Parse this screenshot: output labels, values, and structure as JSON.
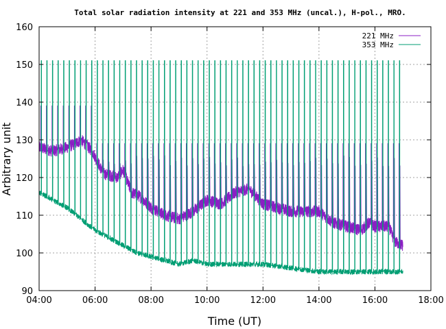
{
  "chart_data": {
    "type": "line",
    "title": "Total solar radiation intensity at 221 and 353 MHz (uncal.), H-pol., MRO.",
    "xlabel": "Time (UT)",
    "ylabel": "Arbitrary unit",
    "xlim": [
      4,
      18
    ],
    "ylim": [
      90,
      160
    ],
    "x_ticks": [
      "04:00",
      "06:00",
      "08:00",
      "10:00",
      "12:00",
      "14:00",
      "16:00",
      "18:00"
    ],
    "y_ticks": [
      90,
      100,
      110,
      120,
      130,
      140,
      150,
      160
    ],
    "grid": true,
    "legend_position": "top-right",
    "series": [
      {
        "name": "221 MHz",
        "color": "#8b1ec4",
        "x": [
          4.0,
          4.5,
          5.0,
          5.3,
          5.5,
          5.9,
          6.3,
          6.8,
          7.0,
          7.3,
          7.6,
          8.0,
          8.5,
          9.0,
          9.5,
          10.0,
          10.5,
          11.0,
          11.5,
          12.0,
          12.5,
          13.0,
          13.5,
          14.0,
          14.5,
          15.0,
          15.5,
          15.8,
          16.0,
          16.5,
          16.7,
          17.0
        ],
        "values": [
          128,
          127,
          128,
          129,
          130,
          127,
          121,
          120,
          122,
          116,
          115,
          112,
          110,
          109,
          111,
          114,
          113,
          116,
          117,
          113,
          112,
          111,
          111,
          111,
          108,
          107,
          106,
          108,
          107,
          107,
          103,
          102
        ],
        "comb_top": 139,
        "comb_top_late": 129,
        "comb_step_hours": 0.2
      },
      {
        "name": "353 MHz",
        "color": "#009e73",
        "x": [
          4.0,
          4.5,
          5.0,
          5.5,
          6.0,
          6.5,
          7.0,
          7.5,
          8.0,
          8.5,
          9.0,
          9.5,
          10.0,
          11.0,
          12.0,
          13.0,
          14.0,
          15.0,
          16.0,
          17.0
        ],
        "values": [
          116,
          114,
          112,
          109,
          106,
          104,
          102,
          100,
          99,
          98,
          97,
          98,
          97,
          97,
          97,
          96,
          95,
          95,
          95,
          95
        ],
        "comb_top": 151,
        "comb_step_hours": 0.2
      }
    ]
  }
}
